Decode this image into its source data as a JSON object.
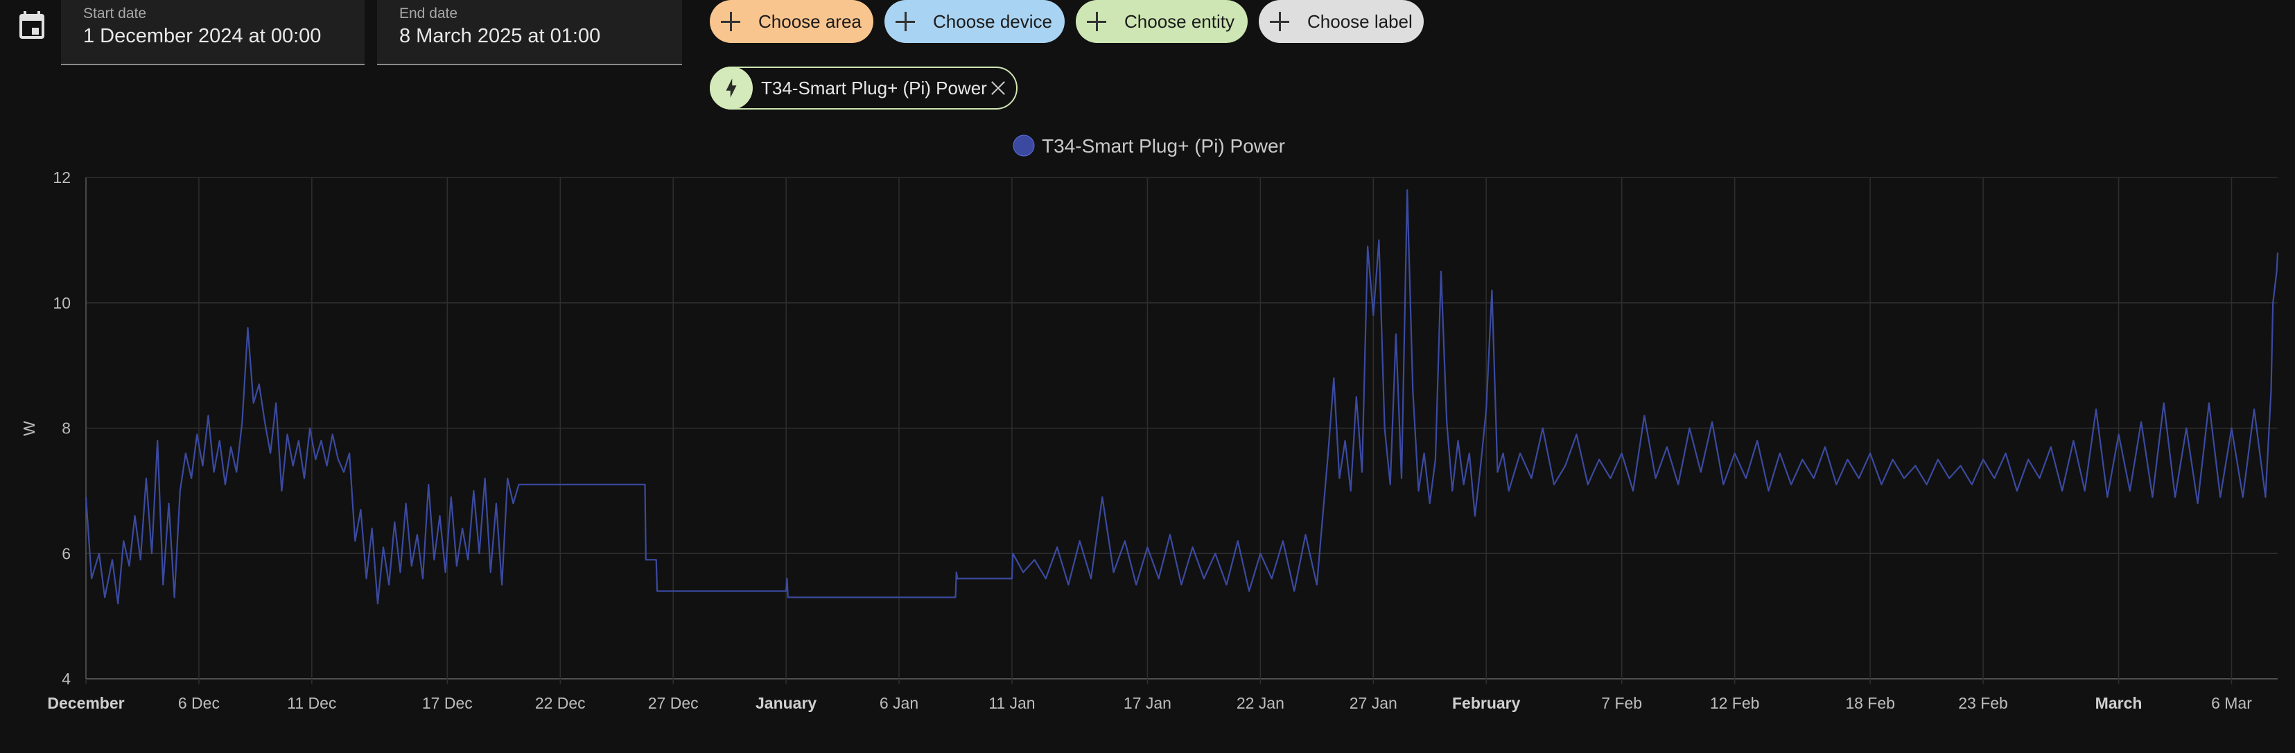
{
  "date_picker": {
    "start_label": "Start date",
    "start_value": "1 December 2024 at 00:00",
    "end_label": "End date",
    "end_value": "8 March 2025 at 01:00"
  },
  "target_chips": [
    {
      "label": "Choose area",
      "color": "#f8c58f"
    },
    {
      "label": "Choose device",
      "color": "#a9d3f2"
    },
    {
      "label": "Choose entity",
      "color": "#cde6b3"
    },
    {
      "label": "Choose label",
      "color": "#dedede"
    }
  ],
  "selected_entity": {
    "label": "T34-Smart Plug+ (Pi) Power",
    "icon": "lightning-bolt-icon"
  },
  "colors": {
    "series": "#3b4aa0",
    "series_bright": "#5c6fe0",
    "grid": "#2e2e2e"
  },
  "chart_data": {
    "type": "line",
    "legend": "T34-Smart Plug+ (Pi) Power",
    "legend_position": "top-center",
    "ylabel": "W",
    "ylim": [
      4,
      12
    ],
    "y_ticks": [
      "12",
      "10",
      "8",
      "6",
      "4"
    ],
    "xlim": [
      "2024-12-01T00:00",
      "2025-03-08T01:00"
    ],
    "x_ticks": [
      {
        "label": "December",
        "date": "2024-12-01",
        "bold": true
      },
      {
        "label": "6 Dec",
        "date": "2024-12-06"
      },
      {
        "label": "11 Dec",
        "date": "2024-12-11"
      },
      {
        "label": "17 Dec",
        "date": "2024-12-17"
      },
      {
        "label": "22 Dec",
        "date": "2024-12-22"
      },
      {
        "label": "27 Dec",
        "date": "2024-12-27"
      },
      {
        "label": "January",
        "date": "2025-01-01",
        "bold": true
      },
      {
        "label": "6 Jan",
        "date": "2025-01-06"
      },
      {
        "label": "11 Jan",
        "date": "2025-01-11"
      },
      {
        "label": "17 Jan",
        "date": "2025-01-17"
      },
      {
        "label": "22 Jan",
        "date": "2025-01-22"
      },
      {
        "label": "27 Jan",
        "date": "2025-01-27"
      },
      {
        "label": "February",
        "date": "2025-02-01",
        "bold": true
      },
      {
        "label": "7 Feb",
        "date": "2025-02-07"
      },
      {
        "label": "12 Feb",
        "date": "2025-02-12"
      },
      {
        "label": "18 Feb",
        "date": "2025-02-18"
      },
      {
        "label": "23 Feb",
        "date": "2025-02-23"
      },
      {
        "label": "March",
        "date": "2025-03-01",
        "bold": true
      },
      {
        "label": "6 Mar",
        "date": "2025-03-06"
      }
    ],
    "grid": true,
    "series": [
      {
        "name": "T34-Smart Plug+ (Pi) Power",
        "points": [
          [
            "2024-12-01T00:00",
            6.9
          ],
          [
            "2024-12-01T06:00",
            5.6
          ],
          [
            "2024-12-01T14:00",
            6.0
          ],
          [
            "2024-12-01T20:00",
            5.3
          ],
          [
            "2024-12-02T04:00",
            5.9
          ],
          [
            "2024-12-02T10:00",
            5.2
          ],
          [
            "2024-12-02T16:00",
            6.2
          ],
          [
            "2024-12-02T22:00",
            5.8
          ],
          [
            "2024-12-03T04:00",
            6.6
          ],
          [
            "2024-12-03T10:00",
            5.9
          ],
          [
            "2024-12-03T16:00",
            7.2
          ],
          [
            "2024-12-03T22:00",
            6.0
          ],
          [
            "2024-12-04T04:00",
            7.8
          ],
          [
            "2024-12-04T10:00",
            5.5
          ],
          [
            "2024-12-04T16:00",
            6.8
          ],
          [
            "2024-12-04T22:00",
            5.3
          ],
          [
            "2024-12-05T04:00",
            7.0
          ],
          [
            "2024-12-05T10:00",
            7.6
          ],
          [
            "2024-12-05T16:00",
            7.2
          ],
          [
            "2024-12-05T22:00",
            7.9
          ],
          [
            "2024-12-06T04:00",
            7.4
          ],
          [
            "2024-12-06T10:00",
            8.2
          ],
          [
            "2024-12-06T16:00",
            7.3
          ],
          [
            "2024-12-06T22:00",
            7.8
          ],
          [
            "2024-12-07T04:00",
            7.1
          ],
          [
            "2024-12-07T10:00",
            7.7
          ],
          [
            "2024-12-07T16:00",
            7.3
          ],
          [
            "2024-12-07T22:00",
            8.1
          ],
          [
            "2024-12-08T04:00",
            9.6
          ],
          [
            "2024-12-08T10:00",
            8.4
          ],
          [
            "2024-12-08T16:00",
            8.7
          ],
          [
            "2024-12-08T22:00",
            8.1
          ],
          [
            "2024-12-09T04:00",
            7.6
          ],
          [
            "2024-12-09T10:00",
            8.4
          ],
          [
            "2024-12-09T16:00",
            7.0
          ],
          [
            "2024-12-09T22:00",
            7.9
          ],
          [
            "2024-12-10T04:00",
            7.4
          ],
          [
            "2024-12-10T10:00",
            7.8
          ],
          [
            "2024-12-10T16:00",
            7.2
          ],
          [
            "2024-12-10T22:00",
            8.0
          ],
          [
            "2024-12-11T04:00",
            7.5
          ],
          [
            "2024-12-11T10:00",
            7.8
          ],
          [
            "2024-12-11T16:00",
            7.4
          ],
          [
            "2024-12-11T22:00",
            7.9
          ],
          [
            "2024-12-12T04:00",
            7.5
          ],
          [
            "2024-12-12T10:00",
            7.3
          ],
          [
            "2024-12-12T16:00",
            7.6
          ],
          [
            "2024-12-12T22:00",
            6.2
          ],
          [
            "2024-12-13T04:00",
            6.7
          ],
          [
            "2024-12-13T10:00",
            5.6
          ],
          [
            "2024-12-13T16:00",
            6.4
          ],
          [
            "2024-12-13T22:00",
            5.2
          ],
          [
            "2024-12-14T04:00",
            6.1
          ],
          [
            "2024-12-14T10:00",
            5.5
          ],
          [
            "2024-12-14T16:00",
            6.5
          ],
          [
            "2024-12-14T22:00",
            5.7
          ],
          [
            "2024-12-15T04:00",
            6.8
          ],
          [
            "2024-12-15T10:00",
            5.8
          ],
          [
            "2024-12-15T16:00",
            6.3
          ],
          [
            "2024-12-15T22:00",
            5.6
          ],
          [
            "2024-12-16T04:00",
            7.1
          ],
          [
            "2024-12-16T10:00",
            5.9
          ],
          [
            "2024-12-16T16:00",
            6.6
          ],
          [
            "2024-12-16T22:00",
            5.7
          ],
          [
            "2024-12-17T04:00",
            6.9
          ],
          [
            "2024-12-17T10:00",
            5.8
          ],
          [
            "2024-12-17T16:00",
            6.4
          ],
          [
            "2024-12-17T22:00",
            5.9
          ],
          [
            "2024-12-18T04:00",
            7.0
          ],
          [
            "2024-12-18T10:00",
            6.0
          ],
          [
            "2024-12-18T16:00",
            7.2
          ],
          [
            "2024-12-18T22:00",
            5.7
          ],
          [
            "2024-12-19T04:00",
            6.8
          ],
          [
            "2024-12-19T10:00",
            5.5
          ],
          [
            "2024-12-19T16:00",
            7.2
          ],
          [
            "2024-12-19T22:00",
            6.8
          ],
          [
            "2024-12-20T04:00",
            7.1
          ],
          [
            "2024-12-20T06:00",
            7.1
          ],
          [
            "2024-12-25T18:00",
            7.1
          ],
          [
            "2024-12-25T19:00",
            5.9
          ],
          [
            "2024-12-26T06:00",
            5.9
          ],
          [
            "2024-12-26T07:00",
            5.4
          ],
          [
            "2025-01-01T00:00",
            5.4
          ],
          [
            "2025-01-01T01:00",
            5.6
          ],
          [
            "2025-01-01T02:00",
            5.3
          ],
          [
            "2025-01-08T12:00",
            5.3
          ],
          [
            "2025-01-08T13:00",
            5.7
          ],
          [
            "2025-01-08T14:00",
            5.6
          ],
          [
            "2025-01-11T00:00",
            5.6
          ],
          [
            "2025-01-11T01:00",
            6.0
          ],
          [
            "2025-01-11T12:00",
            5.7
          ],
          [
            "2025-01-12T00:00",
            5.9
          ],
          [
            "2025-01-12T12:00",
            5.6
          ],
          [
            "2025-01-13T00:00",
            6.1
          ],
          [
            "2025-01-13T12:00",
            5.5
          ],
          [
            "2025-01-14T00:00",
            6.2
          ],
          [
            "2025-01-14T12:00",
            5.6
          ],
          [
            "2025-01-15T00:00",
            6.9
          ],
          [
            "2025-01-15T12:00",
            5.7
          ],
          [
            "2025-01-16T00:00",
            6.2
          ],
          [
            "2025-01-16T12:00",
            5.5
          ],
          [
            "2025-01-17T00:00",
            6.1
          ],
          [
            "2025-01-17T12:00",
            5.6
          ],
          [
            "2025-01-18T00:00",
            6.3
          ],
          [
            "2025-01-18T12:00",
            5.5
          ],
          [
            "2025-01-19T00:00",
            6.1
          ],
          [
            "2025-01-19T12:00",
            5.6
          ],
          [
            "2025-01-20T00:00",
            6.0
          ],
          [
            "2025-01-20T12:00",
            5.5
          ],
          [
            "2025-01-21T00:00",
            6.2
          ],
          [
            "2025-01-21T12:00",
            5.4
          ],
          [
            "2025-01-22T00:00",
            6.0
          ],
          [
            "2025-01-22T12:00",
            5.6
          ],
          [
            "2025-01-23T00:00",
            6.2
          ],
          [
            "2025-01-23T12:00",
            5.4
          ],
          [
            "2025-01-24T00:00",
            6.3
          ],
          [
            "2025-01-24T12:00",
            5.5
          ],
          [
            "2025-01-25T00:00",
            7.6
          ],
          [
            "2025-01-25T06:00",
            8.8
          ],
          [
            "2025-01-25T12:00",
            7.2
          ],
          [
            "2025-01-25T18:00",
            7.8
          ],
          [
            "2025-01-26T00:00",
            7.0
          ],
          [
            "2025-01-26T06:00",
            8.5
          ],
          [
            "2025-01-26T12:00",
            7.3
          ],
          [
            "2025-01-26T18:00",
            10.9
          ],
          [
            "2025-01-27T00:00",
            9.8
          ],
          [
            "2025-01-27T06:00",
            11.0
          ],
          [
            "2025-01-27T12:00",
            8.0
          ],
          [
            "2025-01-27T18:00",
            7.1
          ],
          [
            "2025-01-28T00:00",
            9.5
          ],
          [
            "2025-01-28T06:00",
            7.2
          ],
          [
            "2025-01-28T12:00",
            11.8
          ],
          [
            "2025-01-28T18:00",
            8.6
          ],
          [
            "2025-01-29T00:00",
            7.0
          ],
          [
            "2025-01-29T06:00",
            7.6
          ],
          [
            "2025-01-29T12:00",
            6.8
          ],
          [
            "2025-01-29T18:00",
            7.5
          ],
          [
            "2025-01-30T00:00",
            10.5
          ],
          [
            "2025-01-30T06:00",
            8.1
          ],
          [
            "2025-01-30T12:00",
            7.0
          ],
          [
            "2025-01-30T18:00",
            7.8
          ],
          [
            "2025-01-31T00:00",
            7.1
          ],
          [
            "2025-01-31T06:00",
            7.6
          ],
          [
            "2025-01-31T12:00",
            6.6
          ],
          [
            "2025-01-31T18:00",
            7.4
          ],
          [
            "2025-02-01T00:00",
            8.3
          ],
          [
            "2025-02-01T06:00",
            10.2
          ],
          [
            "2025-02-01T12:00",
            7.3
          ],
          [
            "2025-02-01T18:00",
            7.6
          ],
          [
            "2025-02-02T00:00",
            7.0
          ],
          [
            "2025-02-02T12:00",
            7.6
          ],
          [
            "2025-02-03T00:00",
            7.2
          ],
          [
            "2025-02-03T12:00",
            8.0
          ],
          [
            "2025-02-04T00:00",
            7.1
          ],
          [
            "2025-02-04T12:00",
            7.4
          ],
          [
            "2025-02-05T00:00",
            7.9
          ],
          [
            "2025-02-05T12:00",
            7.1
          ],
          [
            "2025-02-06T00:00",
            7.5
          ],
          [
            "2025-02-06T12:00",
            7.2
          ],
          [
            "2025-02-07T00:00",
            7.6
          ],
          [
            "2025-02-07T12:00",
            7.0
          ],
          [
            "2025-02-08T00:00",
            8.2
          ],
          [
            "2025-02-08T12:00",
            7.2
          ],
          [
            "2025-02-09T00:00",
            7.7
          ],
          [
            "2025-02-09T12:00",
            7.1
          ],
          [
            "2025-02-10T00:00",
            8.0
          ],
          [
            "2025-02-10T12:00",
            7.3
          ],
          [
            "2025-02-11T00:00",
            8.1
          ],
          [
            "2025-02-11T12:00",
            7.1
          ],
          [
            "2025-02-12T00:00",
            7.6
          ],
          [
            "2025-02-12T12:00",
            7.2
          ],
          [
            "2025-02-13T00:00",
            7.8
          ],
          [
            "2025-02-13T12:00",
            7.0
          ],
          [
            "2025-02-14T00:00",
            7.6
          ],
          [
            "2025-02-14T12:00",
            7.1
          ],
          [
            "2025-02-15T00:00",
            7.5
          ],
          [
            "2025-02-15T12:00",
            7.2
          ],
          [
            "2025-02-16T00:00",
            7.7
          ],
          [
            "2025-02-16T12:00",
            7.1
          ],
          [
            "2025-02-17T00:00",
            7.5
          ],
          [
            "2025-02-17T12:00",
            7.2
          ],
          [
            "2025-02-18T00:00",
            7.6
          ],
          [
            "2025-02-18T12:00",
            7.1
          ],
          [
            "2025-02-19T00:00",
            7.5
          ],
          [
            "2025-02-19T12:00",
            7.2
          ],
          [
            "2025-02-20T00:00",
            7.4
          ],
          [
            "2025-02-20T12:00",
            7.1
          ],
          [
            "2025-02-21T00:00",
            7.5
          ],
          [
            "2025-02-21T12:00",
            7.2
          ],
          [
            "2025-02-22T00:00",
            7.4
          ],
          [
            "2025-02-22T12:00",
            7.1
          ],
          [
            "2025-02-23T00:00",
            7.5
          ],
          [
            "2025-02-23T12:00",
            7.2
          ],
          [
            "2025-02-24T00:00",
            7.6
          ],
          [
            "2025-02-24T12:00",
            7.0
          ],
          [
            "2025-02-25T00:00",
            7.5
          ],
          [
            "2025-02-25T12:00",
            7.2
          ],
          [
            "2025-02-26T00:00",
            7.7
          ],
          [
            "2025-02-26T12:00",
            7.0
          ],
          [
            "2025-02-27T00:00",
            7.8
          ],
          [
            "2025-02-27T12:00",
            7.0
          ],
          [
            "2025-02-28T00:00",
            8.3
          ],
          [
            "2025-02-28T12:00",
            6.9
          ],
          [
            "2025-03-01T00:00",
            7.9
          ],
          [
            "2025-03-01T12:00",
            7.0
          ],
          [
            "2025-03-02T00:00",
            8.1
          ],
          [
            "2025-03-02T12:00",
            6.9
          ],
          [
            "2025-03-03T00:00",
            8.4
          ],
          [
            "2025-03-03T12:00",
            6.9
          ],
          [
            "2025-03-04T00:00",
            8.0
          ],
          [
            "2025-03-04T12:00",
            6.8
          ],
          [
            "2025-03-05T00:00",
            8.4
          ],
          [
            "2025-03-05T12:00",
            6.9
          ],
          [
            "2025-03-06T00:00",
            8.0
          ],
          [
            "2025-03-06T12:00",
            6.9
          ],
          [
            "2025-03-07T00:00",
            8.3
          ],
          [
            "2025-03-07T12:00",
            6.9
          ],
          [
            "2025-03-07T18:00",
            8.6
          ],
          [
            "2025-03-07T20:00",
            10.0
          ],
          [
            "2025-03-08T00:00",
            10.5
          ],
          [
            "2025-03-08T01:00",
            10.8
          ]
        ]
      }
    ]
  }
}
